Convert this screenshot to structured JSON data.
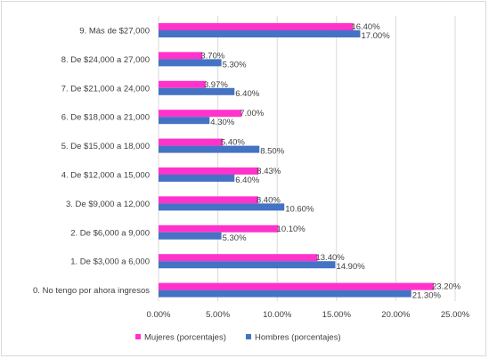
{
  "chart_data": {
    "type": "bar",
    "orientation": "horizontal",
    "categories": [
      "9.    Más de $27,000",
      "8.    De $24,000 a 27,000",
      "7.    De $21,000 a 24,000",
      "6.    De $18,000 a 21,000",
      "5.    De $15,000 a 18,000",
      "4.    De $12,000 a 15,000",
      "3.    De $9,000 a 12,000",
      "2.    De $6,000 a 9,000",
      "1.    De $3,000 a 6,000",
      "0.    No tengo por ahora ingresos"
    ],
    "series": [
      {
        "name": "Mujeres  (porcentajes)",
        "color": "#ff33cc",
        "values": [
          16.4,
          3.7,
          3.97,
          7.0,
          5.4,
          8.43,
          8.4,
          10.1,
          13.4,
          23.2
        ],
        "labels": [
          "16.40%",
          "3.70%",
          "3.97%",
          "7.00%",
          "5.40%",
          "8.43%",
          "8.40%",
          "10.10%",
          "13.40%",
          "23.20%"
        ]
      },
      {
        "name": "Hombres (porcentajes)",
        "color": "#4472c4",
        "values": [
          17.0,
          5.3,
          6.4,
          4.3,
          8.5,
          6.4,
          10.6,
          5.3,
          14.9,
          21.3
        ],
        "labels": [
          "17.00%",
          "5.30%",
          "6.40%",
          "4.30%",
          "8.50%",
          "6.40%",
          "10.60%",
          "5.30%",
          "14.90%",
          "21.30%"
        ]
      }
    ],
    "x_ticks": [
      "0.00%",
      "5.00%",
      "10.00%",
      "15.00%",
      "20.00%",
      "25.00%"
    ],
    "xlim": [
      0,
      25
    ],
    "grid": "vertical",
    "legend": "bottom"
  }
}
